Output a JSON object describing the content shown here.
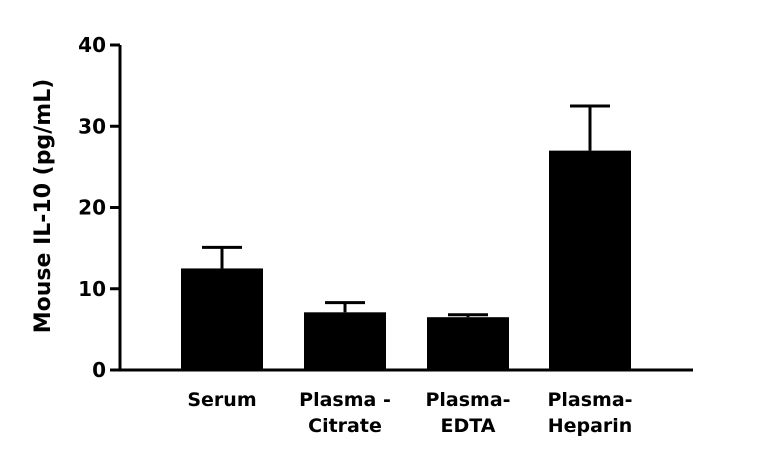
{
  "chart_data": {
    "type": "bar",
    "title": "",
    "xlabel": "",
    "ylabel": "Mouse IL-10 (pg/mL)",
    "ylim": [
      0,
      40
    ],
    "yticks": [
      0,
      10,
      20,
      30,
      40
    ],
    "grid": false,
    "categories": [
      [
        "Serum"
      ],
      [
        "Plasma -",
        "Citrate"
      ],
      [
        "Plasma-",
        "EDTA"
      ],
      [
        "Plasma-",
        "Heparin"
      ]
    ],
    "values": [
      12.5,
      7.1,
      6.5,
      27.0
    ],
    "error_upper": [
      2.6,
      1.2,
      0.3,
      5.5
    ],
    "bar_color": "#000000"
  }
}
